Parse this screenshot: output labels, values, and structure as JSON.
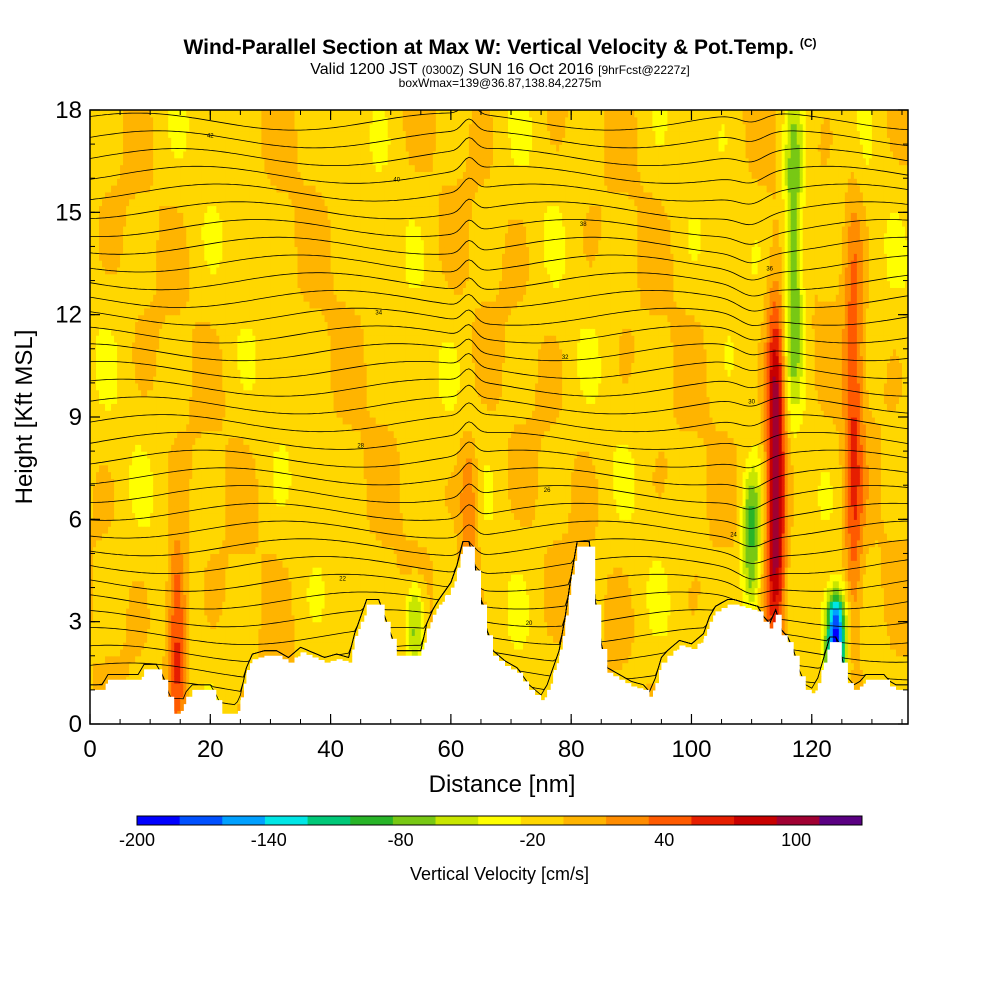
{
  "titles": {
    "main": "Wind-Parallel Section at Max W: Vertical Velocity & Pot.Temp.",
    "mark": "(C)",
    "valid_prefix": "Valid 1200 JST",
    "valid_utc": "(0300Z)",
    "valid_date": "SUN 16 Oct 2016",
    "forecast": "[9hrFcst@2227z]",
    "box": "boxWmax=139@36.87,138.84,2275m"
  },
  "chart_data": {
    "type": "heatmap",
    "title": "Wind-Parallel Section at Max W: Vertical Velocity & Pot.Temp.",
    "xlabel": "Distance [nm]",
    "ylabel": "Height [Kft MSL]",
    "xlim": [
      0,
      136
    ],
    "ylim": [
      0,
      18
    ],
    "x_ticks": [
      "0",
      "20",
      "40",
      "60",
      "80",
      "100",
      "120"
    ],
    "y_ticks": [
      "0",
      "3",
      "6",
      "9",
      "12",
      "15",
      "18"
    ],
    "colorbar": {
      "label": "Vertical Velocity [cm/s]",
      "range": [
        -200,
        130
      ],
      "tick_labels": [
        "-200",
        "-140",
        "-80",
        "-20",
        "40",
        "100"
      ],
      "colors": [
        "#0000ff",
        "#0050ff",
        "#00a0ff",
        "#00e6e6",
        "#00c878",
        "#28b428",
        "#78c814",
        "#c8e600",
        "#ffff00",
        "#ffd700",
        "#ffb400",
        "#ff8c00",
        "#ff5a00",
        "#e61e00",
        "#c80000",
        "#a00032",
        "#5a0082"
      ]
    },
    "features": [
      {
        "type": "updraft",
        "x": 14.5,
        "y_range": [
          0.5,
          5
        ],
        "w_max": 80
      },
      {
        "type": "updraft",
        "x": 63,
        "y_range": [
          4.5,
          8
        ],
        "w_max": 50
      },
      {
        "type": "updraft",
        "x": 114,
        "y_range": [
          3,
          12
        ],
        "w_max": 130
      },
      {
        "type": "downdraft",
        "x": 110,
        "y_range": [
          3.5,
          7
        ],
        "w_min": -80
      },
      {
        "type": "downdraft",
        "x": 117,
        "y_range": [
          10,
          18
        ],
        "w_min": -80
      },
      {
        "type": "downdraft",
        "x": 54,
        "y_range": [
          2.2,
          3.8
        ],
        "w_min": -70
      },
      {
        "type": "downdraft",
        "x": 124,
        "y_range": [
          1.2,
          3.5
        ],
        "w_min": -180
      },
      {
        "type": "updraft",
        "x": 127,
        "y_range": [
          2,
          15
        ],
        "w_max": 60
      }
    ],
    "terrain": [
      [
        0,
        1
      ],
      [
        2,
        1
      ],
      [
        3,
        1.3
      ],
      [
        8,
        1.3
      ],
      [
        9,
        1.6
      ],
      [
        11,
        1.6
      ],
      [
        12,
        1.3
      ],
      [
        13,
        0.8
      ],
      [
        14,
        0.3
      ],
      [
        15,
        0.3
      ],
      [
        16,
        0.8
      ],
      [
        17,
        1
      ],
      [
        20,
        1
      ],
      [
        21,
        0.7
      ],
      [
        22,
        0.3
      ],
      [
        24,
        0.3
      ],
      [
        25,
        0.7
      ],
      [
        26,
        1.5
      ],
      [
        27,
        1.9
      ],
      [
        29,
        2
      ],
      [
        31,
        2
      ],
      [
        33,
        1.8
      ],
      [
        35,
        2.1
      ],
      [
        39,
        1.8
      ],
      [
        41,
        1.9
      ],
      [
        43,
        1.8
      ],
      [
        44,
        2.5
      ],
      [
        46,
        3.5
      ],
      [
        48,
        3.5
      ],
      [
        49,
        3
      ],
      [
        50,
        2.5
      ],
      [
        51,
        2
      ],
      [
        55,
        2
      ],
      [
        56,
        2.8
      ],
      [
        57,
        3.2
      ],
      [
        58,
        3.5
      ],
      [
        60,
        4
      ],
      [
        61,
        4.5
      ],
      [
        62,
        5.2
      ],
      [
        63,
        5.2
      ],
      [
        64,
        4.5
      ],
      [
        65,
        3.5
      ],
      [
        66,
        2.6
      ],
      [
        67,
        2
      ],
      [
        69,
        1.7
      ],
      [
        71,
        1.5
      ],
      [
        73,
        1
      ],
      [
        75,
        0.7
      ],
      [
        76,
        1
      ],
      [
        77,
        1.5
      ],
      [
        78,
        2
      ],
      [
        79,
        3
      ],
      [
        80,
        4.2
      ],
      [
        81,
        5.2
      ],
      [
        83,
        5.2
      ],
      [
        84,
        3.5
      ],
      [
        85,
        2.2
      ],
      [
        86,
        1.5
      ],
      [
        88,
        1.3
      ],
      [
        90,
        1.1
      ],
      [
        92,
        1
      ],
      [
        93,
        0.8
      ],
      [
        94,
        1.2
      ],
      [
        95,
        1.8
      ],
      [
        96,
        2
      ],
      [
        98,
        2.3
      ],
      [
        100,
        2.2
      ],
      [
        102,
        2.5
      ],
      [
        103,
        3
      ],
      [
        104,
        3.3
      ],
      [
        106,
        3.5
      ],
      [
        107,
        3.5
      ],
      [
        109,
        3.4
      ],
      [
        111,
        3.3
      ],
      [
        112,
        3
      ],
      [
        113,
        2.8
      ],
      [
        114,
        3.2
      ],
      [
        115,
        2.6
      ],
      [
        116,
        2.4
      ],
      [
        117,
        2
      ],
      [
        118,
        1.4
      ],
      [
        119,
        1.0
      ],
      [
        120,
        0.9
      ],
      [
        121,
        1.2
      ],
      [
        122,
        1.8
      ],
      [
        123,
        2.4
      ],
      [
        124,
        2.4
      ],
      [
        125,
        1.8
      ],
      [
        126,
        1.2
      ],
      [
        127,
        1.0
      ],
      [
        128,
        1.1
      ],
      [
        129,
        1.3
      ],
      [
        131,
        1.3
      ],
      [
        132,
        1.3
      ],
      [
        133,
        1.1
      ],
      [
        134,
        1.0
      ],
      [
        136,
        1.0
      ]
    ],
    "contour_labels": [
      "42",
      "40",
      "38",
      "36",
      "34",
      "32",
      "30",
      "28",
      "26",
      "24",
      "22",
      "20"
    ]
  }
}
